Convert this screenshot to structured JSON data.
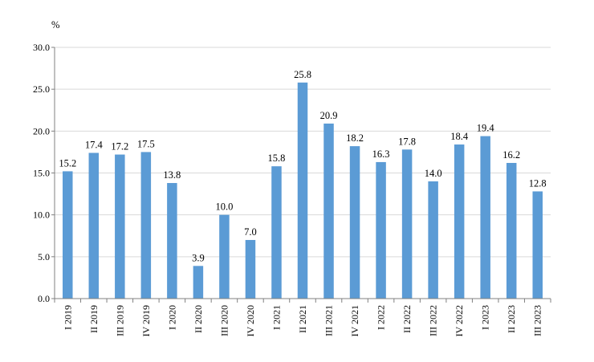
{
  "chart_data": {
    "type": "bar",
    "title": "",
    "xlabel": "",
    "ylabel": "%",
    "ylim": [
      0,
      30
    ],
    "yticks": [
      "0.0",
      "5.0",
      "10.0",
      "15.0",
      "20.0",
      "25.0",
      "30.0"
    ],
    "grid": true,
    "color": "#5b9bd5",
    "categories": [
      "I 2019",
      "II 2019",
      "III 2019",
      "IV 2019",
      "I 2020",
      "II 2020",
      "III 2020",
      "IV 2020",
      "I 2021",
      "II 2021",
      "III 2021",
      "IV 2021",
      "I 2022",
      "II 2022",
      "III 2022",
      "IV 2022",
      "I 2023",
      "II 2023",
      "III 2023"
    ],
    "values": [
      15.2,
      17.4,
      17.2,
      17.5,
      13.8,
      3.9,
      10.0,
      7.0,
      15.8,
      25.8,
      20.9,
      18.2,
      16.3,
      17.8,
      14.0,
      18.4,
      19.4,
      16.2,
      12.8
    ],
    "value_labels": [
      "15.2",
      "17.4",
      "17.2",
      "17.5",
      "13.8",
      "3.9",
      "10.0",
      "7.0",
      "15.8",
      "25.8",
      "20.9",
      "18.2",
      "16.3",
      "17.8",
      "14.0",
      "18.4",
      "19.4",
      "16.2",
      "12.8"
    ]
  }
}
